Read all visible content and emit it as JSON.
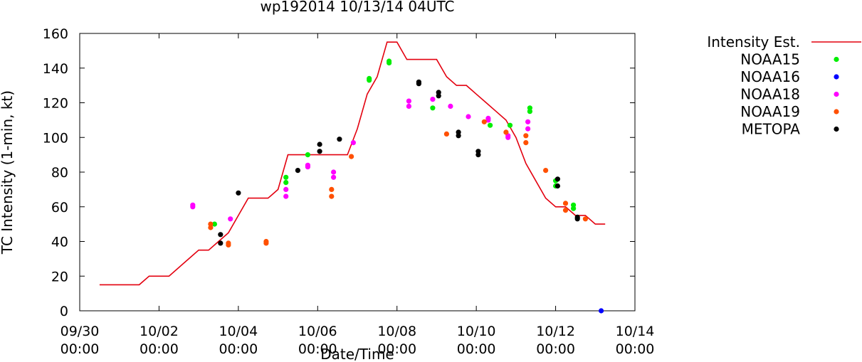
{
  "chart_data": {
    "type": "scatter",
    "title": "wp192014 10/13/14 04UTC",
    "xlabel": "Date/Time",
    "ylabel": "TC Intensity (1-min, kt)",
    "xlim_days": [
      0,
      14
    ],
    "x_origin": "09/30 00:00",
    "ylim": [
      0,
      160
    ],
    "yticks": [
      0,
      20,
      40,
      60,
      80,
      100,
      120,
      140,
      160
    ],
    "xticks": [
      {
        "day": 0,
        "line1": "09/30",
        "line2": "00:00"
      },
      {
        "day": 2,
        "line1": "10/02",
        "line2": "00:00"
      },
      {
        "day": 4,
        "line1": "10/04",
        "line2": "00:00"
      },
      {
        "day": 6,
        "line1": "10/06",
        "line2": "00:00"
      },
      {
        "day": 8,
        "line1": "10/08",
        "line2": "00:00"
      },
      {
        "day": 10,
        "line1": "10/10",
        "line2": "00:00"
      },
      {
        "day": 12,
        "line1": "10/12",
        "line2": "00:00"
      },
      {
        "day": 14,
        "line1": "10/14",
        "line2": "00:00"
      }
    ],
    "grid": false,
    "legend_position": "outside-right",
    "series": [
      {
        "name": "Intensity Est.",
        "kind": "line",
        "color": "#e3000f",
        "points": [
          [
            0.5,
            15
          ],
          [
            1.0,
            15
          ],
          [
            1.5,
            15
          ],
          [
            1.75,
            20
          ],
          [
            2.0,
            20
          ],
          [
            2.25,
            20
          ],
          [
            2.5,
            25
          ],
          [
            2.75,
            30
          ],
          [
            3.0,
            35
          ],
          [
            3.25,
            35
          ],
          [
            3.5,
            40
          ],
          [
            3.75,
            45
          ],
          [
            4.0,
            55
          ],
          [
            4.25,
            65
          ],
          [
            4.5,
            65
          ],
          [
            4.75,
            65
          ],
          [
            5.0,
            70
          ],
          [
            5.25,
            90
          ],
          [
            5.5,
            90
          ],
          [
            5.75,
            90
          ],
          [
            6.0,
            90
          ],
          [
            6.25,
            90
          ],
          [
            6.5,
            90
          ],
          [
            6.75,
            90
          ],
          [
            7.0,
            105
          ],
          [
            7.25,
            125
          ],
          [
            7.5,
            135
          ],
          [
            7.75,
            155
          ],
          [
            8.0,
            155
          ],
          [
            8.25,
            145
          ],
          [
            8.5,
            145
          ],
          [
            8.75,
            145
          ],
          [
            9.0,
            145
          ],
          [
            9.25,
            135
          ],
          [
            9.5,
            130
          ],
          [
            9.75,
            130
          ],
          [
            10.0,
            125
          ],
          [
            10.25,
            120
          ],
          [
            10.5,
            115
          ],
          [
            10.75,
            110
          ],
          [
            11.0,
            100
          ],
          [
            11.25,
            85
          ],
          [
            11.5,
            75
          ],
          [
            11.75,
            65
          ],
          [
            12.0,
            60
          ],
          [
            12.25,
            60
          ],
          [
            12.5,
            55
          ],
          [
            12.75,
            55
          ],
          [
            13.0,
            50
          ],
          [
            13.25,
            50
          ]
        ]
      },
      {
        "name": "NOAA15",
        "kind": "points",
        "color": "#00ee00",
        "points": [
          [
            3.4,
            50
          ],
          [
            5.2,
            74
          ],
          [
            5.2,
            77
          ],
          [
            5.75,
            90
          ],
          [
            7.3,
            133
          ],
          [
            7.3,
            134
          ],
          [
            7.8,
            143
          ],
          [
            7.8,
            144
          ],
          [
            8.9,
            117
          ],
          [
            10.35,
            107
          ],
          [
            10.85,
            107
          ],
          [
            11.35,
            115
          ],
          [
            11.35,
            117
          ],
          [
            12.0,
            72
          ],
          [
            12.0,
            75
          ],
          [
            12.45,
            59
          ],
          [
            12.45,
            61
          ]
        ]
      },
      {
        "name": "NOAA16",
        "kind": "points",
        "color": "#0000ff",
        "points": [
          [
            13.15,
            0
          ]
        ]
      },
      {
        "name": "NOAA18",
        "kind": "points",
        "color": "#ff00ff",
        "points": [
          [
            2.85,
            60
          ],
          [
            2.85,
            61
          ],
          [
            3.8,
            53
          ],
          [
            5.2,
            66
          ],
          [
            5.2,
            70
          ],
          [
            5.75,
            83
          ],
          [
            5.75,
            84
          ],
          [
            6.4,
            77
          ],
          [
            6.4,
            80
          ],
          [
            6.9,
            97
          ],
          [
            8.3,
            118
          ],
          [
            8.3,
            121
          ],
          [
            8.9,
            122
          ],
          [
            9.35,
            118
          ],
          [
            9.8,
            112
          ],
          [
            10.3,
            110
          ],
          [
            10.3,
            111
          ],
          [
            10.8,
            100
          ],
          [
            10.8,
            101
          ],
          [
            11.3,
            105
          ],
          [
            11.3,
            109
          ]
        ]
      },
      {
        "name": "NOAA19",
        "kind": "points",
        "color": "#ff5000",
        "points": [
          [
            3.3,
            48
          ],
          [
            3.3,
            50
          ],
          [
            3.75,
            38
          ],
          [
            3.75,
            39
          ],
          [
            4.7,
            39
          ],
          [
            4.7,
            40
          ],
          [
            6.35,
            66
          ],
          [
            6.35,
            70
          ],
          [
            6.85,
            89
          ],
          [
            9.25,
            102
          ],
          [
            10.2,
            109
          ],
          [
            10.75,
            103
          ],
          [
            11.25,
            97
          ],
          [
            11.25,
            101
          ],
          [
            11.75,
            81
          ],
          [
            12.25,
            58
          ],
          [
            12.25,
            62
          ],
          [
            12.75,
            53
          ]
        ]
      },
      {
        "name": "METOPA",
        "kind": "points",
        "color": "#000000",
        "points": [
          [
            3.55,
            39
          ],
          [
            3.55,
            44
          ],
          [
            4.0,
            68
          ],
          [
            5.5,
            81
          ],
          [
            6.05,
            92
          ],
          [
            6.05,
            96
          ],
          [
            6.55,
            99
          ],
          [
            8.55,
            131
          ],
          [
            8.55,
            132
          ],
          [
            9.05,
            124
          ],
          [
            9.05,
            126
          ],
          [
            9.55,
            101
          ],
          [
            9.55,
            103
          ],
          [
            10.05,
            90
          ],
          [
            10.05,
            92
          ],
          [
            12.05,
            72
          ],
          [
            12.05,
            76
          ],
          [
            12.55,
            53
          ],
          [
            12.55,
            54
          ]
        ]
      }
    ]
  }
}
